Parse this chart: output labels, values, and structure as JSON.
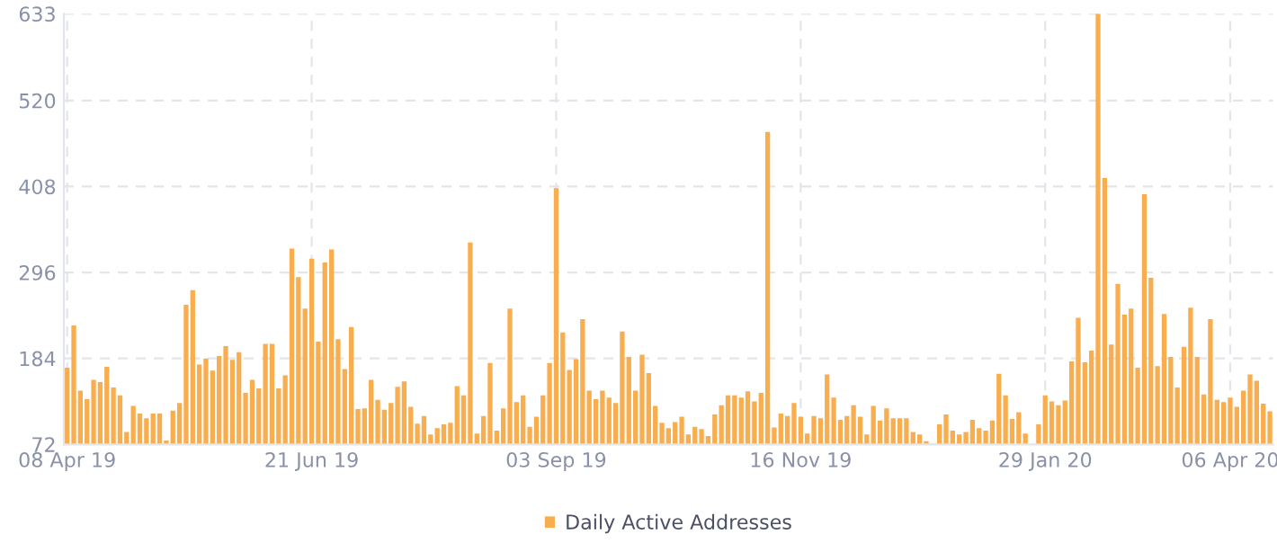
{
  "chart_data": {
    "type": "bar",
    "categories": [
      "08 Apr 19",
      null,
      null,
      null,
      null,
      null,
      null,
      null,
      null,
      null,
      null,
      null,
      null,
      null,
      null,
      null,
      null,
      null,
      null,
      null,
      null,
      null,
      null,
      null,
      null,
      null,
      null,
      null,
      null,
      null,
      null,
      null,
      null,
      null,
      null,
      null,
      null,
      "21 Jun 19",
      null,
      null,
      null,
      null,
      null,
      null,
      null,
      null,
      null,
      null,
      null,
      null,
      null,
      null,
      null,
      null,
      null,
      null,
      null,
      null,
      null,
      null,
      null,
      null,
      null,
      null,
      null,
      null,
      null,
      null,
      null,
      null,
      null,
      null,
      null,
      null,
      "03 Sep 19",
      null,
      null,
      null,
      null,
      null,
      null,
      null,
      null,
      null,
      null,
      null,
      null,
      null,
      null,
      null,
      null,
      null,
      null,
      null,
      null,
      null,
      null,
      null,
      null,
      null,
      null,
      null,
      null,
      null,
      null,
      null,
      null,
      null,
      null,
      null,
      null,
      "16 Nov 19",
      null,
      null,
      null,
      null,
      null,
      null,
      null,
      null,
      null,
      null,
      null,
      null,
      null,
      null,
      null,
      null,
      null,
      null,
      null,
      null,
      null,
      null,
      null,
      null,
      null,
      null,
      null,
      null,
      null,
      null,
      null,
      null,
      null,
      null,
      null,
      null,
      "29 Jan 20",
      null,
      null,
      null,
      null,
      null,
      null,
      null,
      null,
      null,
      null,
      null,
      null,
      null,
      null,
      null,
      null,
      null,
      null,
      null,
      null,
      null,
      null,
      null,
      null,
      null,
      null,
      null,
      "06 Apr 20",
      null,
      null,
      null,
      null,
      null,
      null
    ],
    "series": [
      {
        "name": "Daily Active Addresses",
        "color": "#f8ad4e",
        "values": [
          172,
          227,
          142,
          131,
          156,
          153,
          173,
          146,
          136,
          88,
          122,
          112,
          106,
          112,
          112,
          77,
          116,
          126,
          254,
          273,
          176,
          184,
          168,
          187,
          200,
          182,
          192,
          139,
          156,
          145,
          203,
          203,
          145,
          162,
          327,
          290,
          249,
          314,
          206,
          309,
          326,
          209,
          170,
          225,
          118,
          119,
          156,
          130,
          117,
          126,
          147,
          154,
          121,
          99,
          109,
          85,
          93,
          98,
          100,
          148,
          136,
          335,
          86,
          109,
          178,
          90,
          119,
          249,
          127,
          136,
          95,
          108,
          136,
          178,
          406,
          218,
          169,
          183,
          235,
          142,
          131,
          142,
          133,
          126,
          219,
          186,
          142,
          189,
          165,
          122,
          100,
          93,
          101,
          108,
          85,
          95,
          92,
          83,
          111,
          123,
          136,
          136,
          133,
          141,
          128,
          139,
          479,
          94,
          112,
          109,
          126,
          108,
          86,
          109,
          106,
          163,
          133,
          104,
          109,
          123,
          108,
          85,
          122,
          103,
          119,
          106,
          106,
          106,
          88,
          85,
          76,
          null,
          98,
          111,
          90,
          85,
          88,
          104,
          93,
          90,
          103,
          164,
          136,
          105,
          114,
          86,
          null,
          98,
          136,
          128,
          123,
          129,
          180,
          237,
          179,
          194,
          633,
          419,
          202,
          281,
          241,
          249,
          172,
          398,
          289,
          174,
          242,
          186,
          146,
          199,
          250,
          186,
          137,
          235,
          130,
          127,
          133,
          121,
          142,
          163,
          155,
          125,
          115
        ]
      }
    ],
    "ylim": [
      72,
      633
    ],
    "yticks": [
      72,
      184,
      296,
      408,
      520,
      633
    ],
    "grid": true,
    "legend": "bottom"
  }
}
